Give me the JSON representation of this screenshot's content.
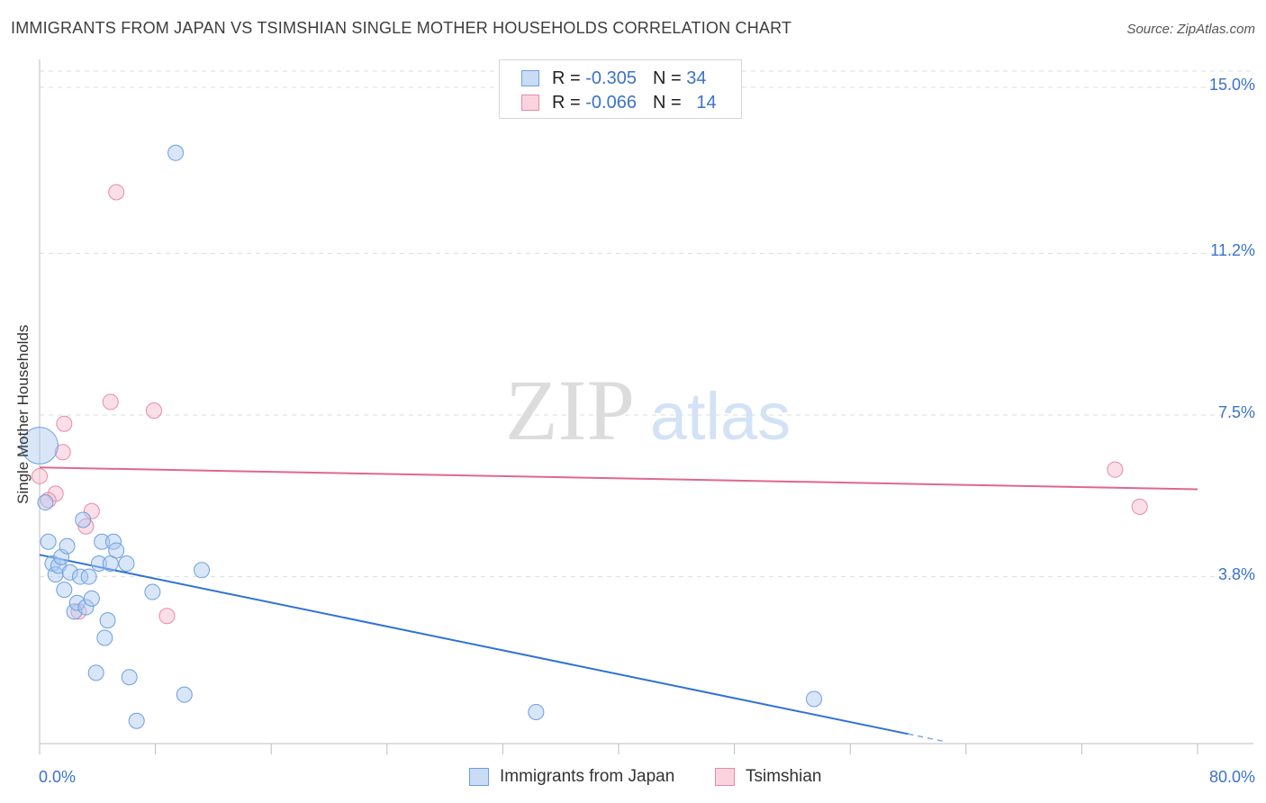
{
  "header": {
    "title": "IMMIGRANTS FROM JAPAN VS TSIMSHIAN SINGLE MOTHER HOUSEHOLDS CORRELATION CHART",
    "source": "Source: ZipAtlas.com"
  },
  "watermark": {
    "zip": "ZIP",
    "atlas": "atlas"
  },
  "legend": {
    "r_label": "R =",
    "n_label": "N =",
    "rows": [
      {
        "r": "-0.305",
        "n": "34",
        "color": "#a8c8f0",
        "border": "#6d9fe0"
      },
      {
        "r": "-0.066",
        "n": "14",
        "color": "#f7b8cc",
        "border": "#e88aa8"
      }
    ]
  },
  "colors": {
    "blue_line": "#2f72d6",
    "pink_line": "#e0678f",
    "blue_fill": "#a8c8f0",
    "pink_fill": "#f7b8cc",
    "tick_text": "#3b72c9"
  },
  "chart_data": {
    "type": "scatter",
    "title": "IMMIGRANTS FROM JAPAN VS TSIMSHIAN SINGLE MOTHER HOUSEHOLDS CORRELATION CHART",
    "xlabel": "",
    "ylabel": "Single Mother Households",
    "xlim": [
      0,
      80
    ],
    "ylim": [
      0,
      15.5
    ],
    "x_tick_labels": [
      "0.0%",
      "80.0%"
    ],
    "y_ticks": [
      {
        "value": 3.8,
        "label": "3.8%"
      },
      {
        "value": 7.5,
        "label": "7.5%"
      },
      {
        "value": 11.2,
        "label": "11.2%"
      },
      {
        "value": 15.0,
        "label": "15.0%"
      }
    ],
    "series": [
      {
        "name": "Immigrants from Japan",
        "r": -0.305,
        "n": 34,
        "trend": {
          "x0": 0,
          "y0": 4.3,
          "x1": 60,
          "y1": 0.2,
          "dash_to_x": 62.5
        },
        "points": [
          {
            "x": 9.4,
            "y": 13.5,
            "s": 1
          },
          {
            "x": 0,
            "y": 6.8,
            "s": 2.4
          },
          {
            "x": 0.4,
            "y": 5.5,
            "s": 1
          },
          {
            "x": 0.6,
            "y": 4.6,
            "s": 1
          },
          {
            "x": 0.9,
            "y": 4.1,
            "s": 1
          },
          {
            "x": 1.1,
            "y": 3.85,
            "s": 1
          },
          {
            "x": 1.3,
            "y": 4.05,
            "s": 1
          },
          {
            "x": 1.5,
            "y": 4.25,
            "s": 1
          },
          {
            "x": 1.7,
            "y": 3.5,
            "s": 1
          },
          {
            "x": 1.9,
            "y": 4.5,
            "s": 1
          },
          {
            "x": 2.1,
            "y": 3.9,
            "s": 1
          },
          {
            "x": 2.4,
            "y": 3.0,
            "s": 1
          },
          {
            "x": 2.6,
            "y": 3.2,
            "s": 1
          },
          {
            "x": 2.8,
            "y": 3.8,
            "s": 1
          },
          {
            "x": 3.0,
            "y": 5.1,
            "s": 1
          },
          {
            "x": 3.2,
            "y": 3.1,
            "s": 1
          },
          {
            "x": 3.4,
            "y": 3.8,
            "s": 1
          },
          {
            "x": 3.6,
            "y": 3.3,
            "s": 1
          },
          {
            "x": 3.9,
            "y": 1.6,
            "s": 1
          },
          {
            "x": 4.1,
            "y": 4.1,
            "s": 1
          },
          {
            "x": 4.3,
            "y": 4.6,
            "s": 1
          },
          {
            "x": 4.5,
            "y": 2.4,
            "s": 1
          },
          {
            "x": 4.7,
            "y": 2.8,
            "s": 1
          },
          {
            "x": 4.9,
            "y": 4.1,
            "s": 1
          },
          {
            "x": 5.1,
            "y": 4.6,
            "s": 1
          },
          {
            "x": 5.3,
            "y": 4.4,
            "s": 1
          },
          {
            "x": 6.0,
            "y": 4.1,
            "s": 1
          },
          {
            "x": 6.2,
            "y": 1.5,
            "s": 1
          },
          {
            "x": 6.7,
            "y": 0.5,
            "s": 1
          },
          {
            "x": 7.8,
            "y": 3.45,
            "s": 1
          },
          {
            "x": 10.0,
            "y": 1.1,
            "s": 1
          },
          {
            "x": 11.2,
            "y": 3.95,
            "s": 1
          },
          {
            "x": 34.3,
            "y": 0.7,
            "s": 1
          },
          {
            "x": 53.5,
            "y": 1.0,
            "s": 1
          }
        ]
      },
      {
        "name": "Tsimshian",
        "r": -0.066,
        "n": 14,
        "trend": {
          "x0": 0,
          "y0": 6.3,
          "x1": 80,
          "y1": 5.8
        },
        "points": [
          {
            "x": 5.3,
            "y": 12.6,
            "s": 1
          },
          {
            "x": 4.9,
            "y": 7.8,
            "s": 1
          },
          {
            "x": 7.9,
            "y": 7.6,
            "s": 1
          },
          {
            "x": 1.7,
            "y": 7.3,
            "s": 1
          },
          {
            "x": 1.6,
            "y": 6.65,
            "s": 1
          },
          {
            "x": 0,
            "y": 6.1,
            "s": 1
          },
          {
            "x": 1.1,
            "y": 5.7,
            "s": 1
          },
          {
            "x": 0.6,
            "y": 5.55,
            "s": 1
          },
          {
            "x": 3.6,
            "y": 5.3,
            "s": 1
          },
          {
            "x": 3.2,
            "y": 4.95,
            "s": 1
          },
          {
            "x": 2.7,
            "y": 3.0,
            "s": 1
          },
          {
            "x": 8.8,
            "y": 2.9,
            "s": 1
          },
          {
            "x": 74.3,
            "y": 6.25,
            "s": 1
          },
          {
            "x": 76.0,
            "y": 5.4,
            "s": 1
          }
        ]
      }
    ],
    "legend_position": "top-center",
    "grid": true
  }
}
